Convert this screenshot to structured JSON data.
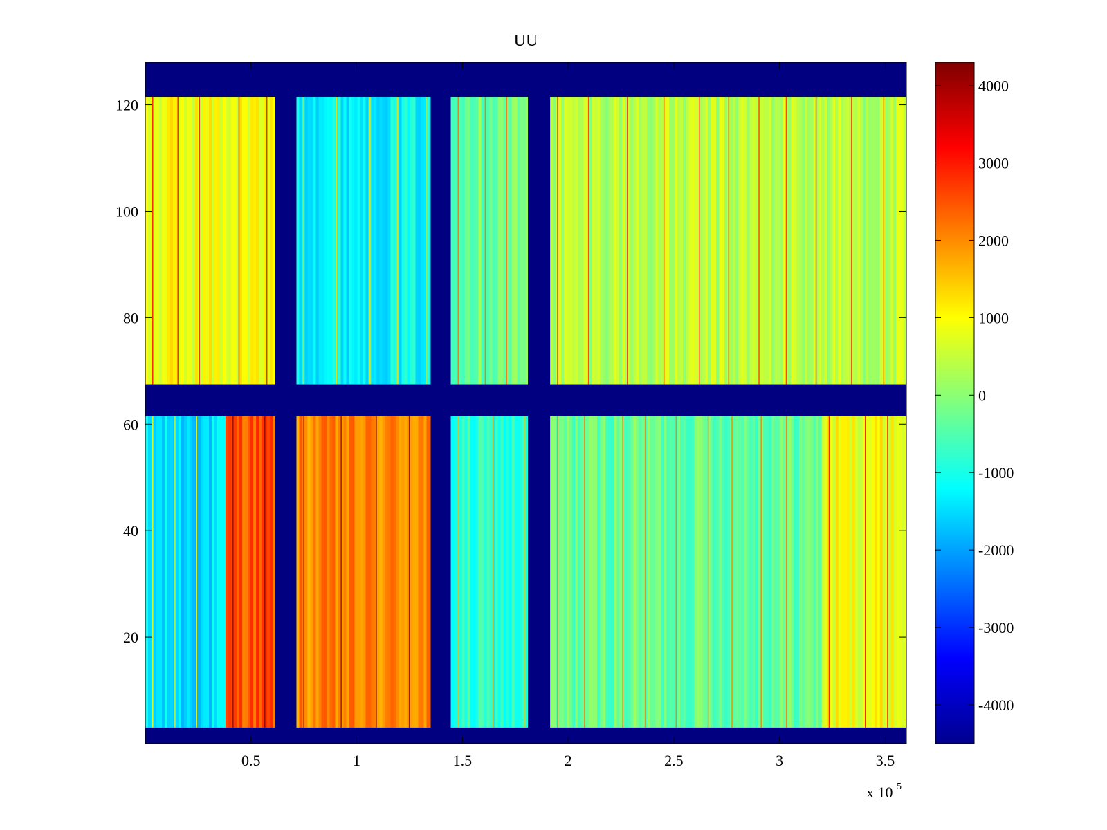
{
  "chart_data": {
    "type": "heatmap",
    "title": "UU",
    "xlabel": "",
    "ylabel": "",
    "x_multiplier_label": "x 10",
    "x_multiplier_exponent": "5",
    "xlim": [
      0,
      3.6
    ],
    "ylim": [
      0,
      128
    ],
    "x_ticks": [
      0.5,
      1,
      1.5,
      2,
      2.5,
      3,
      3.5
    ],
    "x_tick_labels": [
      "0.5",
      "1",
      "1.5",
      "2",
      "2.5",
      "3",
      "3.5"
    ],
    "y_ticks": [
      20,
      40,
      60,
      80,
      100,
      120
    ],
    "y_tick_labels": [
      "20",
      "40",
      "60",
      "80",
      "100",
      "120"
    ],
    "colormap": "jet",
    "clim": [
      -4500,
      4300
    ],
    "colorbar_ticks": [
      4000,
      3000,
      2000,
      1000,
      0,
      -1000,
      -2000,
      -3000,
      -4000
    ],
    "colorbar_tick_labels": [
      "4000",
      "3000",
      "2000",
      "1000",
      "0",
      "-1000",
      "-2000",
      "-3000",
      "-4000"
    ],
    "masked_bands_x": [
      [
        0.615,
        0.715
      ],
      [
        1.35,
        1.445
      ],
      [
        1.81,
        1.915
      ]
    ],
    "masked_bands_y": [
      [
        0,
        3
      ],
      [
        61.5,
        67.5
      ],
      [
        121.5,
        128
      ]
    ],
    "regions": [
      {
        "x": [
          0,
          0.615
        ],
        "y": [
          3,
          61.5
        ],
        "approx_value": -1500
      },
      {
        "x": [
          0.38,
          0.615
        ],
        "y": [
          3,
          61.5
        ],
        "approx_value": 2500
      },
      {
        "x": [
          0.715,
          1.35
        ],
        "y": [
          3,
          61.5
        ],
        "approx_value": 2000
      },
      {
        "x": [
          1.445,
          1.81
        ],
        "y": [
          3,
          61.5
        ],
        "approx_value": -900
      },
      {
        "x": [
          1.915,
          3.2
        ],
        "y": [
          3,
          61.5
        ],
        "approx_value": -300
      },
      {
        "x": [
          3.2,
          3.6
        ],
        "y": [
          3,
          61.5
        ],
        "approx_value": 900
      },
      {
        "x": [
          0,
          0.615
        ],
        "y": [
          67.5,
          121.5
        ],
        "approx_value": 900
      },
      {
        "x": [
          0.715,
          1.35
        ],
        "y": [
          67.5,
          121.5
        ],
        "approx_value": -1200
      },
      {
        "x": [
          1.445,
          1.81
        ],
        "y": [
          67.5,
          121.5
        ],
        "approx_value": -200
      },
      {
        "x": [
          1.915,
          3.6
        ],
        "y": [
          67.5,
          121.5
        ],
        "approx_value": 400
      }
    ]
  }
}
